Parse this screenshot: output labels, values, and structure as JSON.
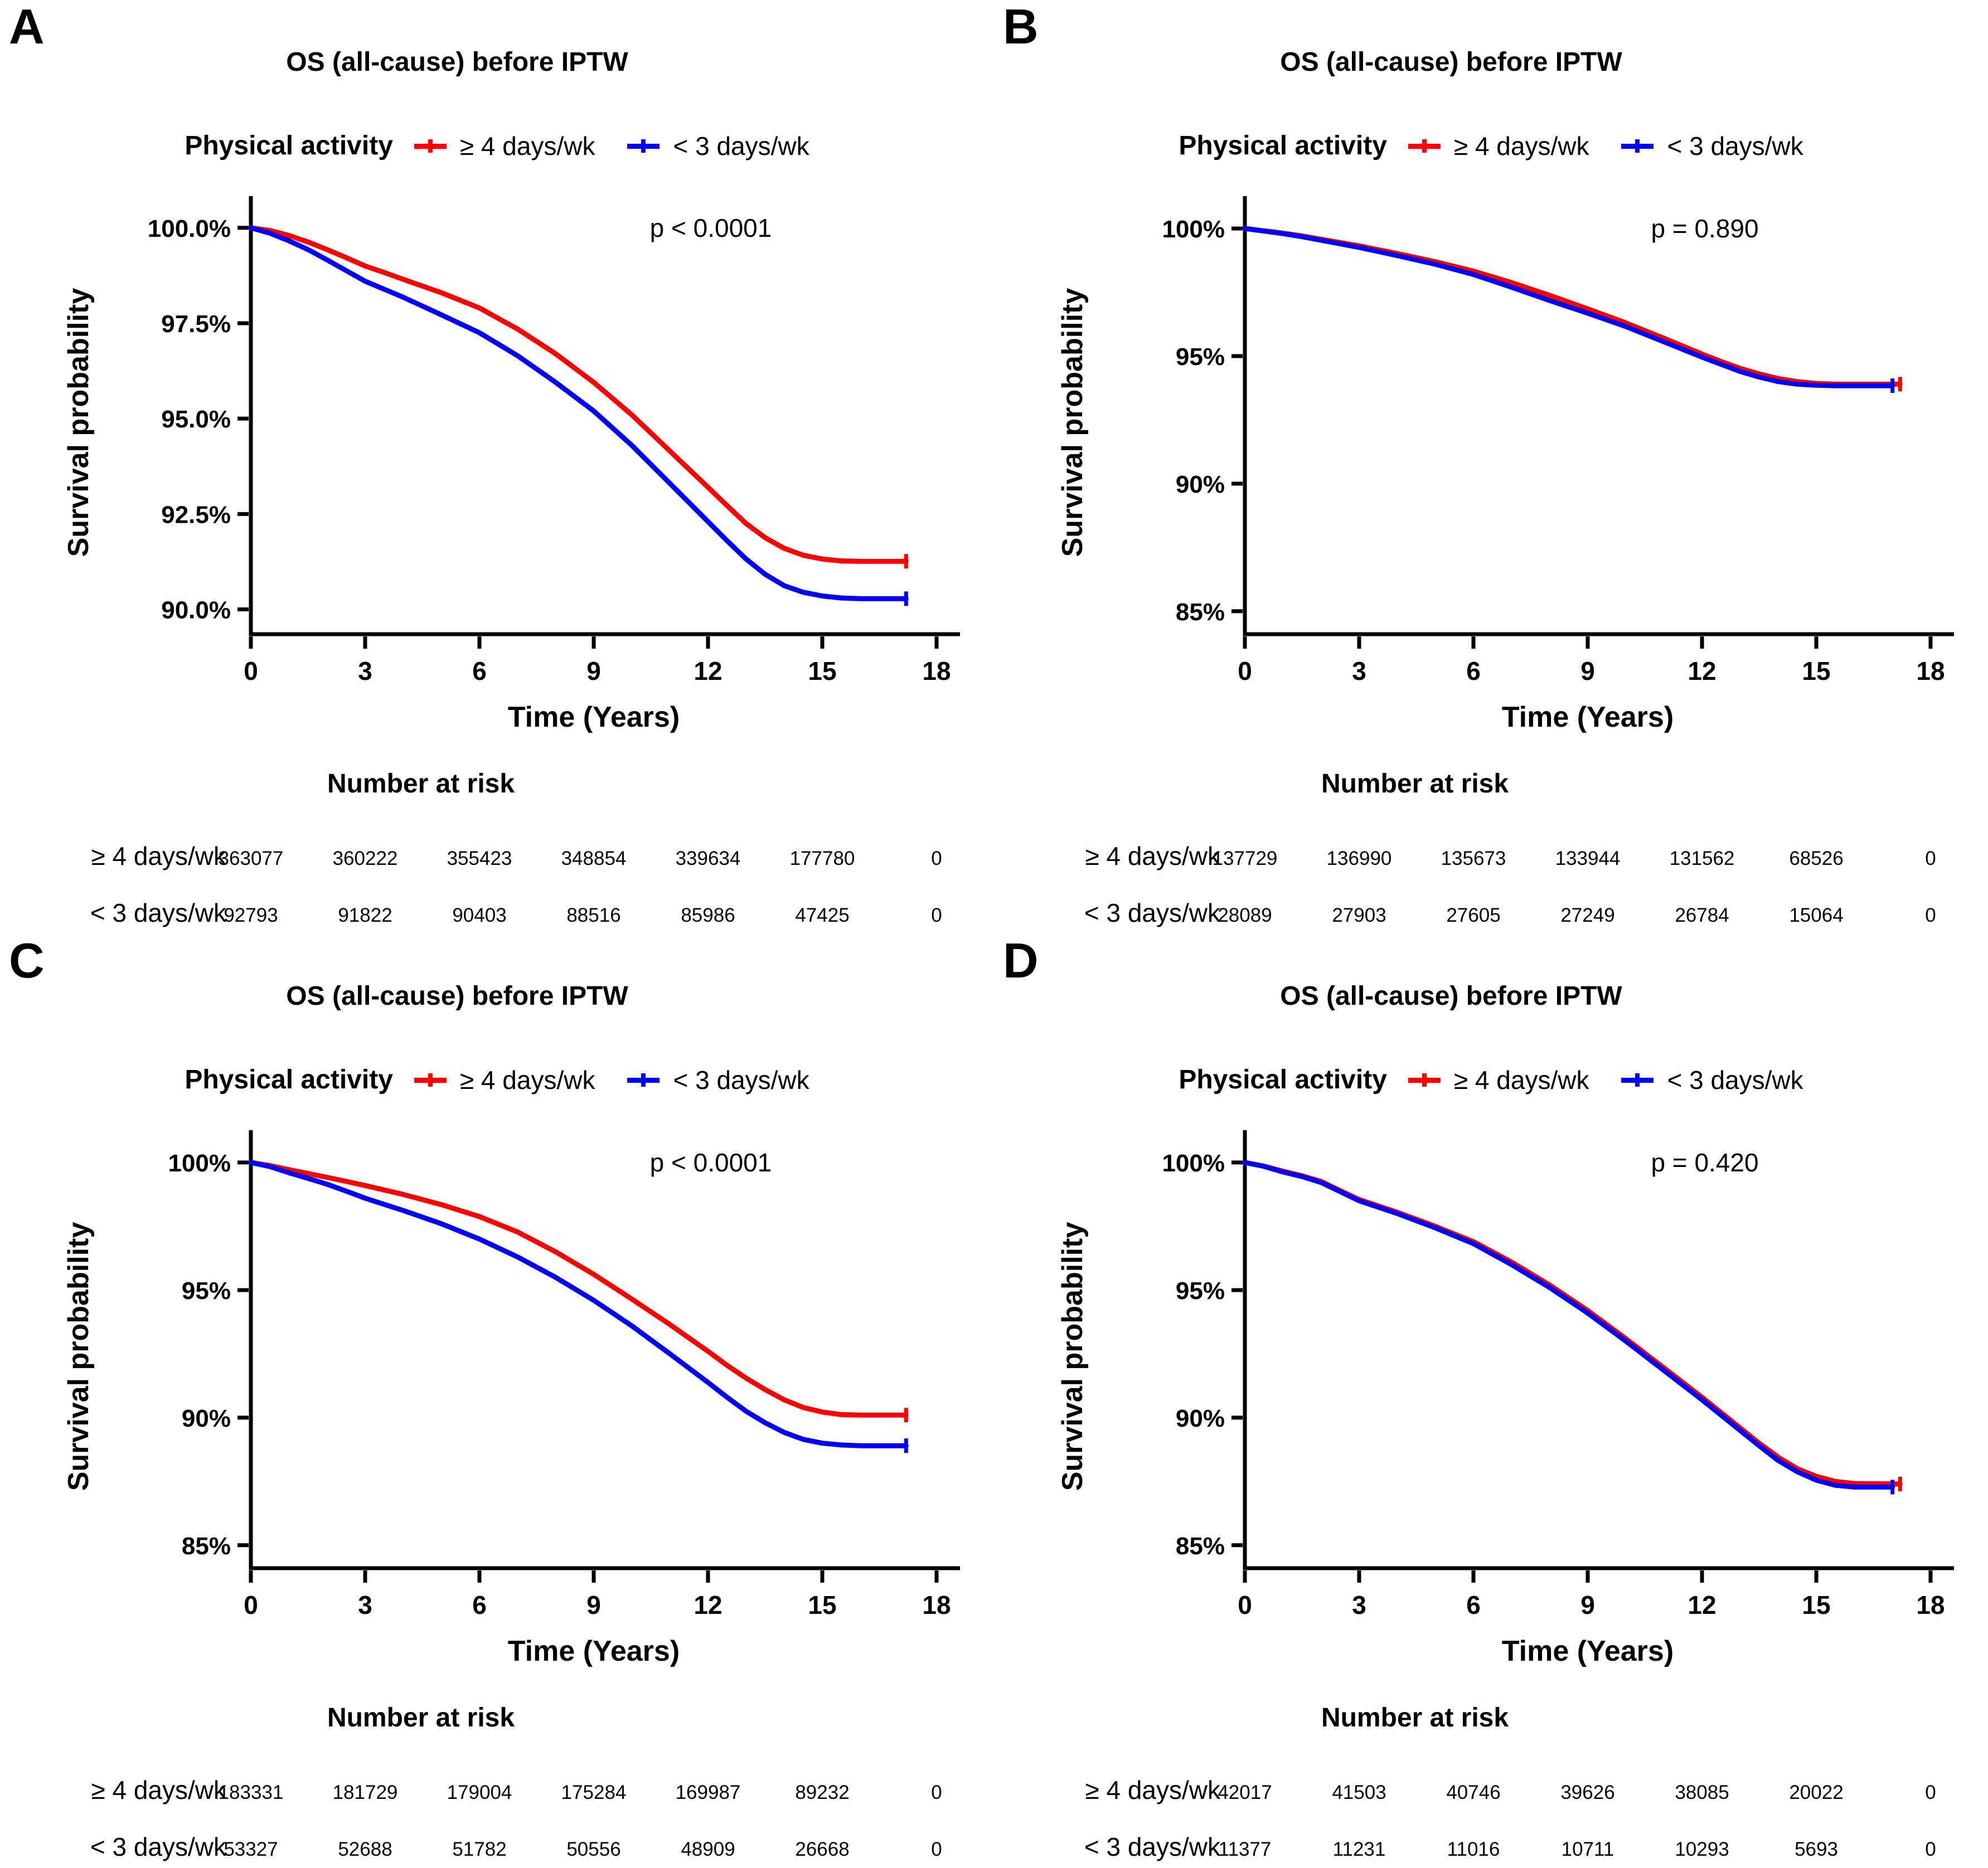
{
  "legend": {
    "title": "Physical activity",
    "items": [
      {
        "label": "≥ 4 days/wk",
        "color": "#FF0000"
      },
      {
        "label": "< 3 days/wk",
        "color": "#0000FF"
      }
    ]
  },
  "chart_data": [
    {
      "type": "line",
      "letter": "A",
      "title": "OS (all-cause) before IPTW",
      "p_label": "p < 0.0001",
      "xlabel": "Time (Years)",
      "ylabel": "Survival probability",
      "xlim": [
        0,
        18
      ],
      "x_ticks": [
        0,
        3,
        6,
        9,
        12,
        15,
        18
      ],
      "ylim": [
        89.35,
        100.45
      ],
      "y_ticks": [
        {
          "value": 100,
          "label": "100.0%"
        },
        {
          "value": 97.5,
          "label": "97.5%"
        },
        {
          "value": 95,
          "label": "95.0%"
        },
        {
          "value": 92.5,
          "label": "92.5%"
        },
        {
          "value": 90,
          "label": "90.0%"
        }
      ],
      "legend": {
        "title": "Physical activity",
        "position": "top"
      },
      "risk_table_title": "Number at risk",
      "series": [
        {
          "name": "≥ 4 days/wk",
          "color": "#FF0000",
          "points": [
            [
              0,
              100
            ],
            [
              0.5,
              99.93
            ],
            [
              1,
              99.8
            ],
            [
              1.5,
              99.63
            ],
            [
              2,
              99.43
            ],
            [
              2.5,
              99.22
            ],
            [
              3,
              99.0
            ],
            [
              3.5,
              98.83
            ],
            [
              4,
              98.65
            ],
            [
              5,
              98.3
            ],
            [
              6,
              97.9
            ],
            [
              7,
              97.35
            ],
            [
              8,
              96.7
            ],
            [
              9,
              95.95
            ],
            [
              10,
              95.1
            ],
            [
              11,
              94.15
            ],
            [
              12,
              93.2
            ],
            [
              12.5,
              92.72
            ],
            [
              13,
              92.25
            ],
            [
              13.5,
              91.88
            ],
            [
              14,
              91.6
            ],
            [
              14.5,
              91.42
            ],
            [
              15,
              91.32
            ],
            [
              15.5,
              91.27
            ],
            [
              16,
              91.26
            ],
            [
              17.2,
              91.26
            ]
          ],
          "number_at_risk": [
            363077,
            360222,
            355423,
            348854,
            339634,
            177780,
            0
          ]
        },
        {
          "name": "< 3 days/wk",
          "color": "#0000FF",
          "points": [
            [
              0,
              100
            ],
            [
              0.5,
              99.86
            ],
            [
              1,
              99.66
            ],
            [
              1.5,
              99.43
            ],
            [
              2,
              99.16
            ],
            [
              2.5,
              98.88
            ],
            [
              3,
              98.6
            ],
            [
              3.5,
              98.39
            ],
            [
              4,
              98.18
            ],
            [
              5,
              97.72
            ],
            [
              6,
              97.25
            ],
            [
              7,
              96.65
            ],
            [
              8,
              95.95
            ],
            [
              9,
              95.2
            ],
            [
              10,
              94.3
            ],
            [
              11,
              93.3
            ],
            [
              12,
              92.3
            ],
            [
              12.5,
              91.8
            ],
            [
              13,
              91.32
            ],
            [
              13.5,
              90.92
            ],
            [
              14,
              90.62
            ],
            [
              14.5,
              90.45
            ],
            [
              15,
              90.35
            ],
            [
              15.5,
              90.3
            ],
            [
              16,
              90.28
            ],
            [
              17.2,
              90.28
            ]
          ],
          "number_at_risk": [
            92793,
            91822,
            90403,
            88516,
            85986,
            47425,
            0
          ]
        }
      ]
    },
    {
      "type": "line",
      "letter": "B",
      "title": "OS (all-cause) before IPTW",
      "p_label": "p = 0.890",
      "xlabel": "Time (Years)",
      "ylabel": "Survival probability",
      "xlim": [
        0,
        18
      ],
      "x_ticks": [
        0,
        3,
        6,
        9,
        12,
        15,
        18
      ],
      "ylim": [
        84.1,
        100.7
      ],
      "y_ticks": [
        {
          "value": 100,
          "label": "100%"
        },
        {
          "value": 95,
          "label": "95%"
        },
        {
          "value": 90,
          "label": "90%"
        },
        {
          "value": 85,
          "label": "85%"
        }
      ],
      "legend": {
        "title": "Physical activity",
        "position": "top"
      },
      "risk_table_title": "Number at risk",
      "series": [
        {
          "name": "≥ 4 days/wk",
          "color": "#FF0000",
          "points": [
            [
              0,
              100
            ],
            [
              0.5,
              99.91
            ],
            [
              1,
              99.82
            ],
            [
              1.5,
              99.71
            ],
            [
              2,
              99.58
            ],
            [
              2.5,
              99.45
            ],
            [
              3,
              99.32
            ],
            [
              4,
              99.02
            ],
            [
              5,
              98.7
            ],
            [
              6,
              98.33
            ],
            [
              7,
              97.88
            ],
            [
              8,
              97.38
            ],
            [
              9,
              96.85
            ],
            [
              10,
              96.3
            ],
            [
              11,
              95.7
            ],
            [
              12,
              95.08
            ],
            [
              12.5,
              94.79
            ],
            [
              13,
              94.52
            ],
            [
              13.5,
              94.3
            ],
            [
              14,
              94.12
            ],
            [
              14.5,
              94.0
            ],
            [
              15,
              93.93
            ],
            [
              15.5,
              93.9
            ],
            [
              16,
              93.9
            ],
            [
              17.2,
              93.9
            ]
          ],
          "number_at_risk": [
            137729,
            136990,
            135673,
            133944,
            131562,
            68526,
            0
          ]
        },
        {
          "name": "< 3 days/wk",
          "color": "#0000FF",
          "points": [
            [
              0,
              100
            ],
            [
              0.5,
              99.9
            ],
            [
              1,
              99.8
            ],
            [
              1.5,
              99.68
            ],
            [
              2,
              99.54
            ],
            [
              2.5,
              99.4
            ],
            [
              3,
              99.26
            ],
            [
              4,
              98.94
            ],
            [
              5,
              98.6
            ],
            [
              6,
              98.2
            ],
            [
              7,
              97.7
            ],
            [
              8,
              97.18
            ],
            [
              9,
              96.68
            ],
            [
              10,
              96.16
            ],
            [
              11,
              95.56
            ],
            [
              12,
              94.96
            ],
            [
              12.5,
              94.68
            ],
            [
              13,
              94.4
            ],
            [
              13.5,
              94.18
            ],
            [
              14,
              94.0
            ],
            [
              14.5,
              93.9
            ],
            [
              15,
              93.86
            ],
            [
              15.5,
              93.84
            ],
            [
              16,
              93.84
            ],
            [
              17,
              93.84
            ]
          ],
          "number_at_risk": [
            28089,
            27903,
            27605,
            27249,
            26784,
            15064,
            0
          ]
        }
      ]
    },
    {
      "type": "line",
      "letter": "C",
      "title": "OS (all-cause) before IPTW",
      "p_label": "p < 0.0001",
      "xlabel": "Time (Years)",
      "ylabel": "Survival probability",
      "xlim": [
        0,
        18
      ],
      "x_ticks": [
        0,
        3,
        6,
        9,
        12,
        15,
        18
      ],
      "ylim": [
        84.1,
        100.7
      ],
      "y_ticks": [
        {
          "value": 100,
          "label": "100%"
        },
        {
          "value": 95,
          "label": "95%"
        },
        {
          "value": 90,
          "label": "90%"
        },
        {
          "value": 85,
          "label": "85%"
        }
      ],
      "legend": {
        "title": "Physical activity",
        "position": "top"
      },
      "risk_table_title": "Number at risk",
      "series": [
        {
          "name": "≥ 4 days/wk",
          "color": "#FF0000",
          "points": [
            [
              0,
              100
            ],
            [
              0.5,
              99.88
            ],
            [
              1,
              99.72
            ],
            [
              1.5,
              99.57
            ],
            [
              2,
              99.42
            ],
            [
              2.5,
              99.26
            ],
            [
              3,
              99.1
            ],
            [
              4,
              98.75
            ],
            [
              5,
              98.35
            ],
            [
              6,
              97.88
            ],
            [
              7,
              97.28
            ],
            [
              8,
              96.5
            ],
            [
              9,
              95.62
            ],
            [
              10,
              94.65
            ],
            [
              11,
              93.65
            ],
            [
              12,
              92.6
            ],
            [
              12.5,
              92.05
            ],
            [
              13,
              91.55
            ],
            [
              13.5,
              91.1
            ],
            [
              14,
              90.7
            ],
            [
              14.5,
              90.4
            ],
            [
              15,
              90.22
            ],
            [
              15.5,
              90.12
            ],
            [
              16,
              90.1
            ],
            [
              17.2,
              90.1
            ]
          ],
          "number_at_risk": [
            183331,
            181729,
            179004,
            175284,
            169987,
            89232,
            0
          ]
        },
        {
          "name": "< 3 days/wk",
          "color": "#0000FF",
          "points": [
            [
              0,
              100
            ],
            [
              0.5,
              99.84
            ],
            [
              1,
              99.6
            ],
            [
              1.5,
              99.38
            ],
            [
              2,
              99.15
            ],
            [
              2.5,
              98.88
            ],
            [
              3,
              98.6
            ],
            [
              4,
              98.12
            ],
            [
              5,
              97.6
            ],
            [
              6,
              97.0
            ],
            [
              7,
              96.3
            ],
            [
              8,
              95.5
            ],
            [
              9,
              94.6
            ],
            [
              10,
              93.6
            ],
            [
              11,
              92.5
            ],
            [
              12,
              91.38
            ],
            [
              12.5,
              90.8
            ],
            [
              13,
              90.25
            ],
            [
              13.5,
              89.8
            ],
            [
              14,
              89.42
            ],
            [
              14.5,
              89.15
            ],
            [
              15,
              89.0
            ],
            [
              15.5,
              88.93
            ],
            [
              16,
              88.9
            ],
            [
              17.2,
              88.9
            ]
          ],
          "number_at_risk": [
            53327,
            52688,
            51782,
            50556,
            48909,
            26668,
            0
          ]
        }
      ]
    },
    {
      "type": "line",
      "letter": "D",
      "title": "OS (all-cause) before IPTW",
      "p_label": "p = 0.420",
      "xlabel": "Time (Years)",
      "ylabel": "Survival probability",
      "xlim": [
        0,
        18
      ],
      "x_ticks": [
        0,
        3,
        6,
        9,
        12,
        15,
        18
      ],
      "ylim": [
        84.1,
        100.7
      ],
      "y_ticks": [
        {
          "value": 100,
          "label": "100%"
        },
        {
          "value": 95,
          "label": "95%"
        },
        {
          "value": 90,
          "label": "90%"
        },
        {
          "value": 85,
          "label": "85%"
        }
      ],
      "legend": {
        "title": "Physical activity",
        "position": "top"
      },
      "risk_table_title": "Number at risk",
      "series": [
        {
          "name": "≥ 4 days/wk",
          "color": "#FF0000",
          "points": [
            [
              0,
              100
            ],
            [
              0.5,
              99.86
            ],
            [
              1,
              99.66
            ],
            [
              1.5,
              99.48
            ],
            [
              2,
              99.26
            ],
            [
              2.5,
              98.9
            ],
            [
              3,
              98.55
            ],
            [
              4,
              98.05
            ],
            [
              5,
              97.5
            ],
            [
              6,
              96.9
            ],
            [
              7,
              96.1
            ],
            [
              8,
              95.2
            ],
            [
              9,
              94.2
            ],
            [
              10,
              93.1
            ],
            [
              11,
              91.95
            ],
            [
              12,
              90.8
            ],
            [
              12.5,
              90.2
            ],
            [
              13,
              89.6
            ],
            [
              13.5,
              89.0
            ],
            [
              14,
              88.45
            ],
            [
              14.5,
              88.0
            ],
            [
              15,
              87.7
            ],
            [
              15.5,
              87.5
            ],
            [
              16,
              87.42
            ],
            [
              17.2,
              87.4
            ]
          ],
          "number_at_risk": [
            42017,
            41503,
            40746,
            39626,
            38085,
            20022,
            0
          ]
        },
        {
          "name": "< 3 days/wk",
          "color": "#0000FF",
          "points": [
            [
              0,
              100
            ],
            [
              0.5,
              99.85
            ],
            [
              1,
              99.63
            ],
            [
              1.5,
              99.45
            ],
            [
              2,
              99.22
            ],
            [
              2.5,
              98.86
            ],
            [
              3,
              98.5
            ],
            [
              4,
              98.0
            ],
            [
              5,
              97.44
            ],
            [
              6,
              96.82
            ],
            [
              7,
              96.0
            ],
            [
              8,
              95.1
            ],
            [
              9,
              94.1
            ],
            [
              10,
              93.0
            ],
            [
              11,
              91.85
            ],
            [
              12,
              90.7
            ],
            [
              12.5,
              90.1
            ],
            [
              13,
              89.5
            ],
            [
              13.5,
              88.9
            ],
            [
              14,
              88.32
            ],
            [
              14.5,
              87.88
            ],
            [
              15,
              87.55
            ],
            [
              15.5,
              87.35
            ],
            [
              16,
              87.28
            ],
            [
              17,
              87.28
            ]
          ],
          "number_at_risk": [
            11377,
            11231,
            11016,
            10711,
            10293,
            5693,
            0
          ]
        }
      ]
    }
  ]
}
